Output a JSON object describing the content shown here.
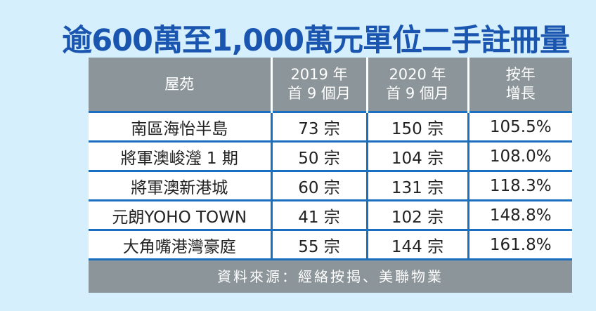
{
  "title": "逾600萬至1,000萬元單位二手註冊量",
  "table": {
    "headers": [
      {
        "line1": "屋苑",
        "line2": ""
      },
      {
        "line1": "2019 年",
        "line2": "首 9 個月"
      },
      {
        "line1": "2020 年",
        "line2": "首 9 個月"
      },
      {
        "line1": "按年",
        "line2": "增長"
      }
    ],
    "rows": [
      {
        "estate": "南區海怡半島",
        "y2019": "73 宗",
        "y2020": "150 宗",
        "growth": "105.5%"
      },
      {
        "estate": "將軍澳峻瀅 1 期",
        "y2019": "50 宗",
        "y2020": "104 宗",
        "growth": "108.0%"
      },
      {
        "estate": "將軍澳新港城",
        "y2019": "60 宗",
        "y2020": "131 宗",
        "growth": "118.3%"
      },
      {
        "estate": "元朗YOHO TOWN",
        "y2019": "41 宗",
        "y2020": "102 宗",
        "growth": "148.8%"
      },
      {
        "estate": "大角嘴港灣豪庭",
        "y2019": "55 宗",
        "y2020": "144 宗",
        "growth": "161.8%"
      }
    ]
  },
  "source": "資料來源：經絡按揭、美聯物業"
}
